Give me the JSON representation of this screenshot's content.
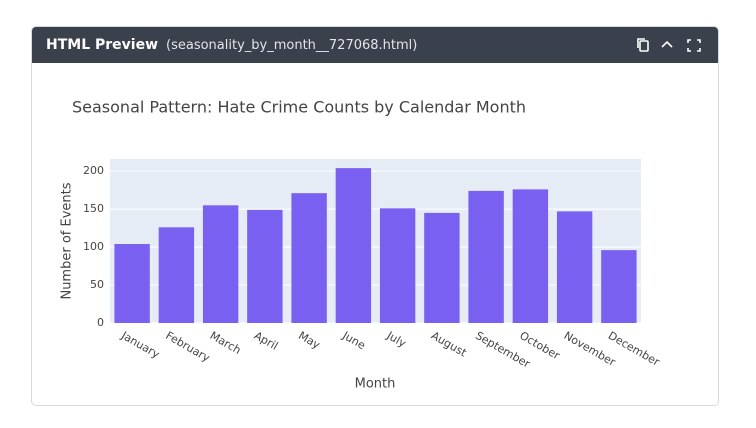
{
  "header": {
    "title": "HTML Preview",
    "filename": "(seasonality_by_month__727068.html)"
  },
  "chart_data": {
    "type": "bar",
    "title": "Seasonal Pattern: Hate Crime Counts by Calendar Month",
    "x_label": "Month",
    "y_label": "Number of Events",
    "categories": [
      "January",
      "February",
      "March",
      "April",
      "May",
      "June",
      "July",
      "August",
      "September",
      "October",
      "November",
      "December"
    ],
    "values": [
      104,
      126,
      155,
      149,
      171,
      204,
      151,
      145,
      174,
      176,
      147,
      96
    ],
    "color": "#7a60f0",
    "ylim": [
      0,
      216
    ],
    "yticks": [
      0,
      50,
      100,
      150,
      200
    ],
    "grid": true
  }
}
